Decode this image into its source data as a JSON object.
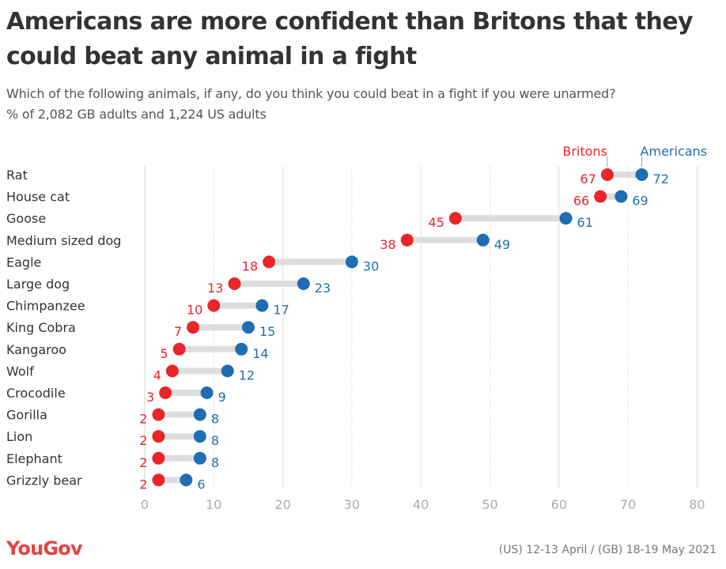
{
  "header": {
    "title": "Americans are more confident than Britons that they could beat any animal in a fight",
    "question": "Which of the following animals, if any, do you think you could beat in a fight if you were unarmed?",
    "base": "% of 2,082 GB adults and 1,224 US adults"
  },
  "footer": {
    "logo": "YouGov",
    "dates": "(US) 12-13 April / (GB) 18-19 May 2021"
  },
  "colors": {
    "britons": "#e8262a",
    "americans": "#1f6db3",
    "connector": "#dddddd",
    "grid": "#dedede",
    "axis_text": "#aaaaaa"
  },
  "chart_data": {
    "type": "dot",
    "categories": [
      "Rat",
      "House cat",
      "Goose",
      "Medium sized dog",
      "Eagle",
      "Large dog",
      "Chimpanzee",
      "King Cobra",
      "Kangaroo",
      "Wolf",
      "Crocodile",
      "Gorilla",
      "Lion",
      "Elephant",
      "Grizzly bear"
    ],
    "series": [
      {
        "name": "Britons",
        "values": [
          67,
          66,
          45,
          38,
          18,
          13,
          10,
          7,
          5,
          4,
          3,
          2,
          2,
          2,
          2
        ]
      },
      {
        "name": "Americans",
        "values": [
          72,
          69,
          61,
          49,
          30,
          23,
          17,
          15,
          14,
          12,
          9,
          8,
          8,
          8,
          6
        ]
      }
    ],
    "xlim": [
      0,
      80
    ],
    "xticks": [
      0,
      10,
      20,
      30,
      40,
      50,
      60,
      70,
      80
    ],
    "legend": "top-right, labels attached to first row",
    "grid": true
  }
}
